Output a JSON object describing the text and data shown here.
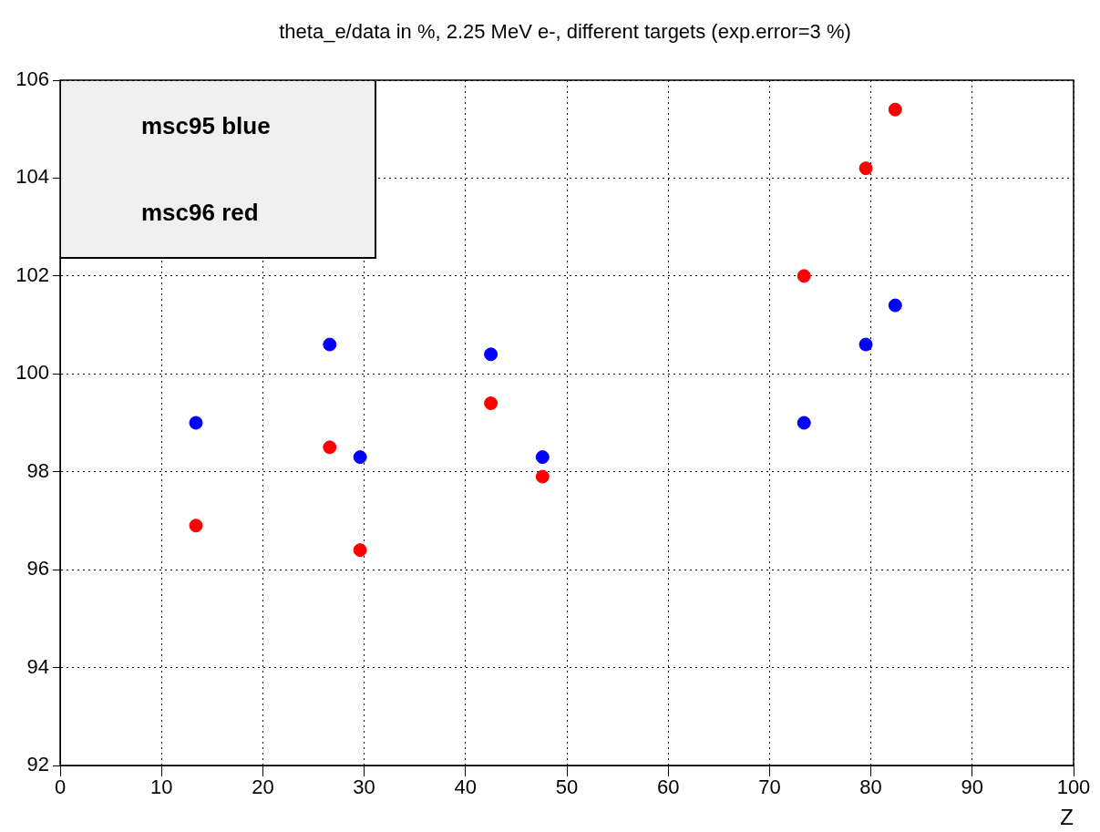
{
  "chart_data": {
    "type": "scatter",
    "title": "theta_e/data in %, 2.25 MeV e-, different targets (exp.error=3 %)",
    "xlabel": "Z",
    "annotations": [
      "msc95 blue",
      "msc96 red"
    ],
    "x": [
      13.4,
      26.6,
      29.6,
      42.5,
      47.6,
      73.4,
      79.5,
      82.4
    ],
    "series": [
      {
        "color": "#0000ff",
        "values": [
          99.0,
          100.6,
          98.3,
          100.4,
          98.3,
          99.0,
          100.6,
          101.4
        ]
      },
      {
        "color": "#ff0000",
        "values": [
          96.9,
          98.5,
          96.4,
          99.4,
          97.9,
          102.0,
          104.2,
          105.4
        ]
      }
    ],
    "xlim": [
      0,
      100
    ],
    "xticks": [
      0,
      10,
      20,
      30,
      40,
      50,
      60,
      70,
      80,
      90,
      100
    ],
    "ylim": [
      92,
      106
    ],
    "yticks": [
      92,
      94,
      96,
      98,
      100,
      102,
      104,
      106
    ],
    "grid": true,
    "marker": "circle",
    "legend": false
  }
}
